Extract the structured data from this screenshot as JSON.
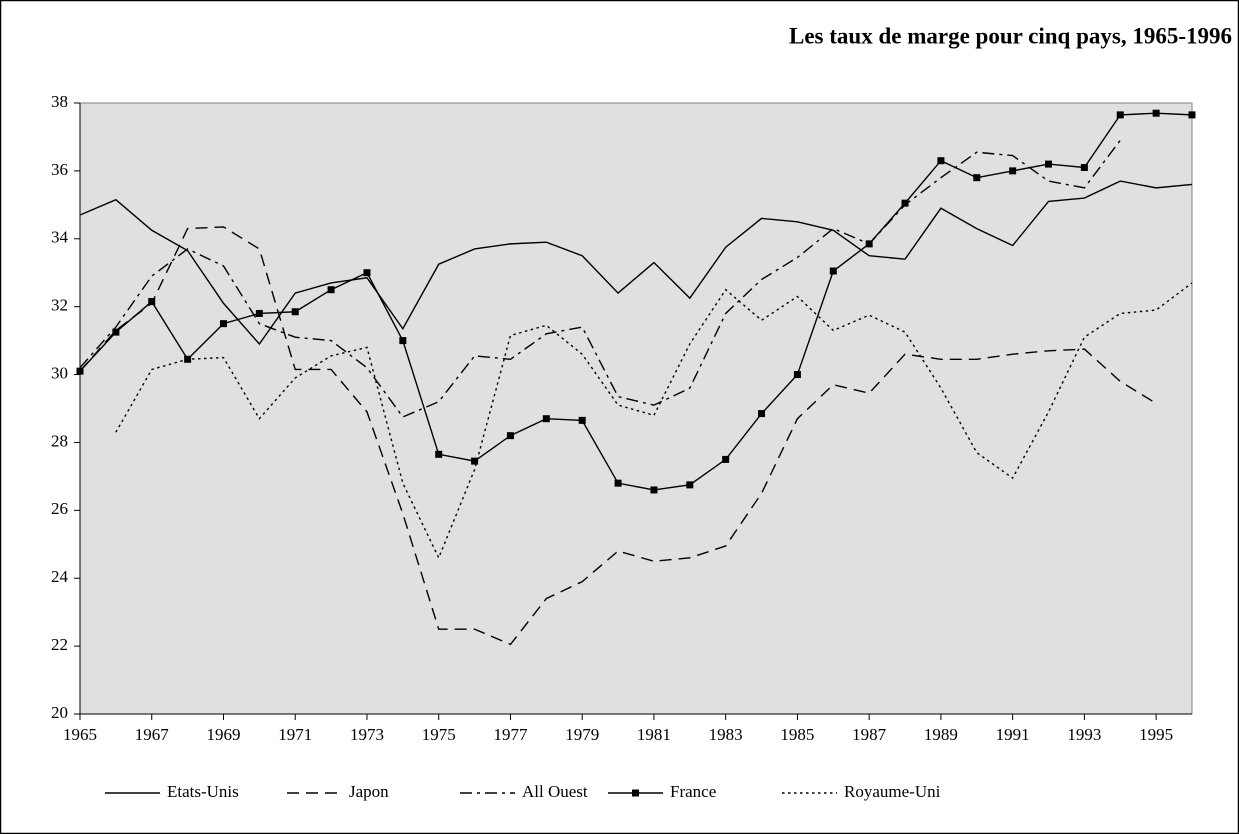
{
  "chart_data": {
    "type": "line",
    "title": "Les taux de marge pour cinq pays, 1965-1996",
    "x": [
      1965,
      1966,
      1967,
      1968,
      1969,
      1970,
      1971,
      1972,
      1973,
      1974,
      1975,
      1976,
      1977,
      1978,
      1979,
      1980,
      1981,
      1982,
      1983,
      1984,
      1985,
      1986,
      1987,
      1988,
      1989,
      1990,
      1991,
      1992,
      1993,
      1994,
      1995,
      1996
    ],
    "xlim": [
      1965,
      1996
    ],
    "xticks": [
      1965,
      1967,
      1969,
      1971,
      1973,
      1975,
      1977,
      1979,
      1981,
      1983,
      1985,
      1987,
      1989,
      1991,
      1993,
      1995
    ],
    "ylim": [
      20,
      38
    ],
    "yticks": [
      20,
      22,
      24,
      26,
      28,
      30,
      32,
      34,
      36,
      38
    ],
    "grid": false,
    "legend": "bottom",
    "series": [
      {
        "name": "Etats-Unis",
        "color": "#000000",
        "dash": "solid",
        "values": [
          34.7,
          35.15,
          34.25,
          33.65,
          32.1,
          30.9,
          32.4,
          32.7,
          32.85,
          31.35,
          33.25,
          33.7,
          33.85,
          33.9,
          33.5,
          32.4,
          33.3,
          32.25,
          33.75,
          34.6,
          34.5,
          34.25,
          33.5,
          33.4,
          34.9,
          34.3,
          33.8,
          35.1,
          35.2,
          35.7,
          35.5,
          35.6
        ]
      },
      {
        "name": "Japon",
        "color": "#000000",
        "dash": "dashed",
        "values": [
          30.1,
          31.3,
          32.1,
          34.3,
          34.35,
          33.7,
          30.15,
          30.15,
          28.9,
          25.9,
          22.5,
          22.5,
          22.05,
          23.4,
          23.9,
          24.8,
          24.5,
          24.6,
          24.95,
          26.5,
          28.7,
          29.7,
          29.45,
          30.6,
          30.45,
          30.45,
          30.6,
          30.7,
          30.75,
          29.8,
          29.15,
          null
        ]
      },
      {
        "name": "All Ouest",
        "color": "#000000",
        "dash": "dashdot",
        "values": [
          30.2,
          31.4,
          32.9,
          33.7,
          33.2,
          31.5,
          31.1,
          31.0,
          30.2,
          28.75,
          29.2,
          30.55,
          30.45,
          31.2,
          31.4,
          29.35,
          29.1,
          29.6,
          31.8,
          32.8,
          33.45,
          34.3,
          33.85,
          35.0,
          35.8,
          36.55,
          36.45,
          35.7,
          35.5,
          36.9,
          null,
          null
        ]
      },
      {
        "name": "France",
        "color": "#000000",
        "dash": "solid",
        "marker": "square",
        "values": [
          30.1,
          31.25,
          32.15,
          30.45,
          31.5,
          31.8,
          31.85,
          32.5,
          33.0,
          31.0,
          27.65,
          27.45,
          28.2,
          28.7,
          28.65,
          26.8,
          26.6,
          26.75,
          27.5,
          28.85,
          30.0,
          33.05,
          33.85,
          35.05,
          36.3,
          35.8,
          36.0,
          36.2,
          36.1,
          37.65,
          37.7,
          37.65
        ]
      },
      {
        "name": "Royaume-Uni",
        "color": "#000000",
        "dash": "dotted",
        "values": [
          null,
          28.3,
          30.15,
          30.45,
          30.5,
          28.7,
          29.9,
          30.55,
          30.8,
          26.8,
          24.6,
          27.2,
          31.15,
          31.45,
          30.6,
          29.1,
          28.8,
          30.9,
          32.5,
          31.6,
          32.3,
          31.3,
          31.75,
          31.25,
          29.6,
          27.7,
          26.95,
          28.9,
          31.1,
          31.8,
          31.9,
          32.7
        ]
      }
    ]
  }
}
